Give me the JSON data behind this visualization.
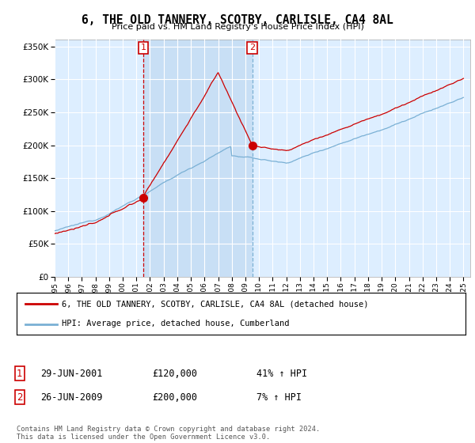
{
  "title": "6, THE OLD TANNERY, SCOTBY, CARLISLE, CA4 8AL",
  "subtitle": "Price paid vs. HM Land Registry's House Price Index (HPI)",
  "ylim": [
    0,
    360000
  ],
  "yticks": [
    0,
    50000,
    100000,
    150000,
    200000,
    250000,
    300000,
    350000
  ],
  "legend_line1": "6, THE OLD TANNERY, SCOTBY, CARLISLE, CA4 8AL (detached house)",
  "legend_line2": "HPI: Average price, detached house, Cumberland",
  "sale1_date": "29-JUN-2001",
  "sale1_price": "£120,000",
  "sale1_hpi": "41% ↑ HPI",
  "sale2_date": "26-JUN-2009",
  "sale2_price": "£200,000",
  "sale2_hpi": "7% ↑ HPI",
  "footer": "Contains HM Land Registry data © Crown copyright and database right 2024.\nThis data is licensed under the Open Government Licence v3.0.",
  "line_color_red": "#cc0000",
  "line_color_blue": "#7ab0d4",
  "vline1_color": "#cc0000",
  "vline2_color": "#7ab0d4",
  "bg_color": "#ffffff",
  "plot_bg_color": "#ddeeff",
  "shade_color": "#c8dff5",
  "grid_color": "#ffffff",
  "sale1_year": 2001.5,
  "sale2_year": 2009.5,
  "sale1_price_val": 120000,
  "sale2_price_val": 200000,
  "xmin": 1995,
  "xmax": 2025
}
